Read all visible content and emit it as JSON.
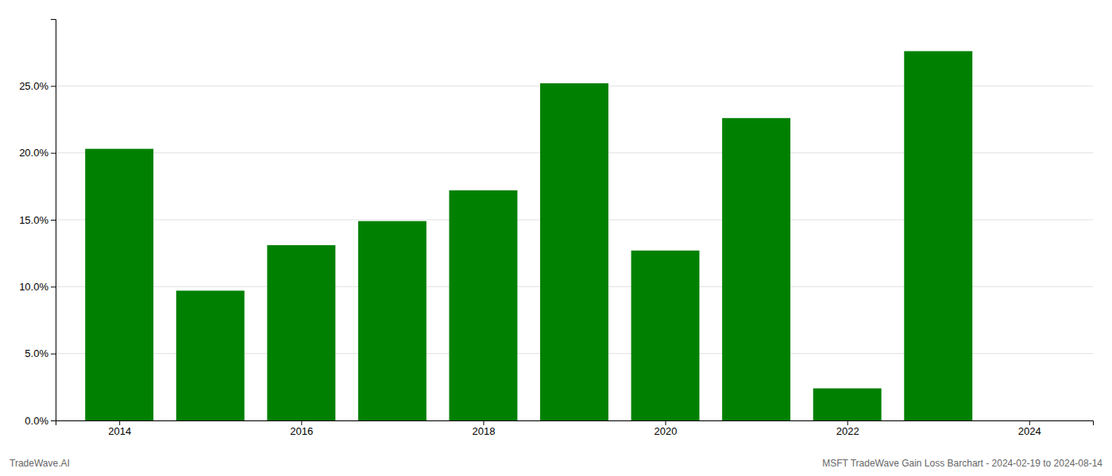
{
  "chart_data": {
    "type": "bar",
    "x": [
      2014,
      2015,
      2016,
      2017,
      2018,
      2019,
      2020,
      2021,
      2022,
      2023
    ],
    "values": [
      0.203,
      0.097,
      0.131,
      0.149,
      0.172,
      0.252,
      0.127,
      0.226,
      0.024,
      0.276
    ],
    "color": "#008000",
    "xlim": [
      2013.3,
      2024.7
    ],
    "xticks": [
      2014,
      2016,
      2018,
      2020,
      2022,
      2024
    ],
    "ylim": [
      0,
      0.3
    ],
    "yticks": [
      {
        "value": 0.0,
        "label": "0.0%"
      },
      {
        "value": 0.05,
        "label": "5.0%"
      },
      {
        "value": 0.1,
        "label": "10.0%"
      },
      {
        "value": 0.15,
        "label": "15.0%"
      },
      {
        "value": 0.2,
        "label": "20.0%"
      },
      {
        "value": 0.25,
        "label": "25.0%"
      }
    ],
    "grid": true,
    "annotations": [
      "TradeWave.AI",
      "MSFT TradeWave Gain Loss Barchart - 2024-02-19 to 2024-08-14"
    ]
  }
}
